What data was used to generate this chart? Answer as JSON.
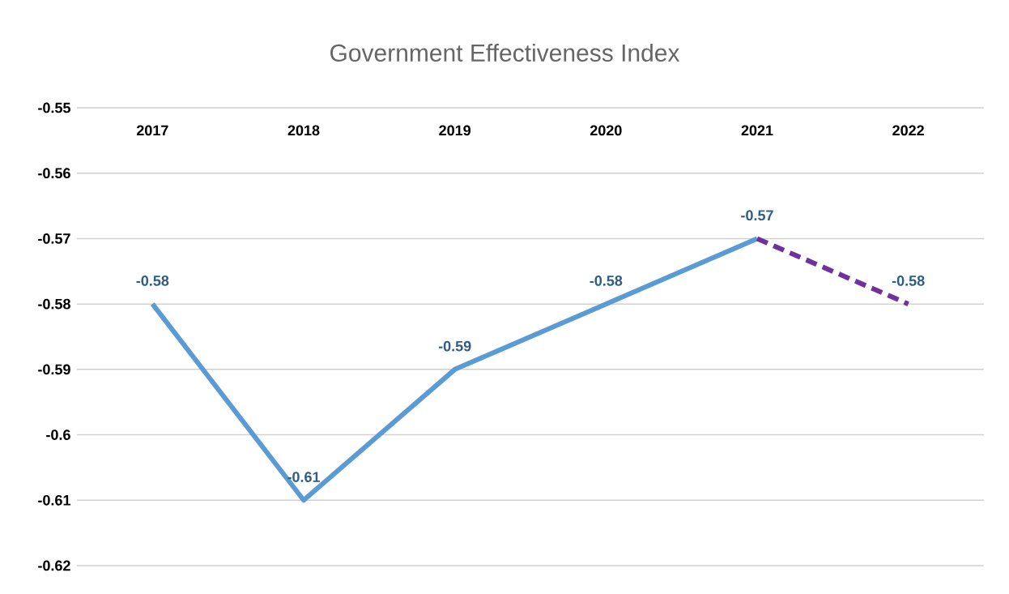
{
  "chart_data": {
    "type": "line",
    "title": "Government Effectiveness Index",
    "categories": [
      "2017",
      "2018",
      "2019",
      "2020",
      "2021",
      "2022"
    ],
    "series": [
      {
        "color": "#5b9bd5",
        "line_style": "solid",
        "values": [
          -0.58,
          -0.61,
          -0.59,
          -0.58,
          -0.57,
          null
        ],
        "value_labels": [
          "-0.58",
          "-0.61",
          "-0.59",
          "-0.58",
          "-0.57",
          null
        ]
      },
      {
        "color": "#7030a0",
        "line_style": "dashed",
        "values": [
          null,
          null,
          null,
          null,
          -0.57,
          -0.58
        ],
        "value_labels": [
          null,
          null,
          null,
          null,
          null,
          "-0.58"
        ]
      }
    ],
    "ylim": [
      -0.62,
      -0.55
    ],
    "yticks": [
      -0.62,
      -0.61,
      -0.6,
      -0.59,
      -0.58,
      -0.57,
      -0.56,
      -0.55
    ],
    "grid": "y",
    "marker": "none"
  }
}
